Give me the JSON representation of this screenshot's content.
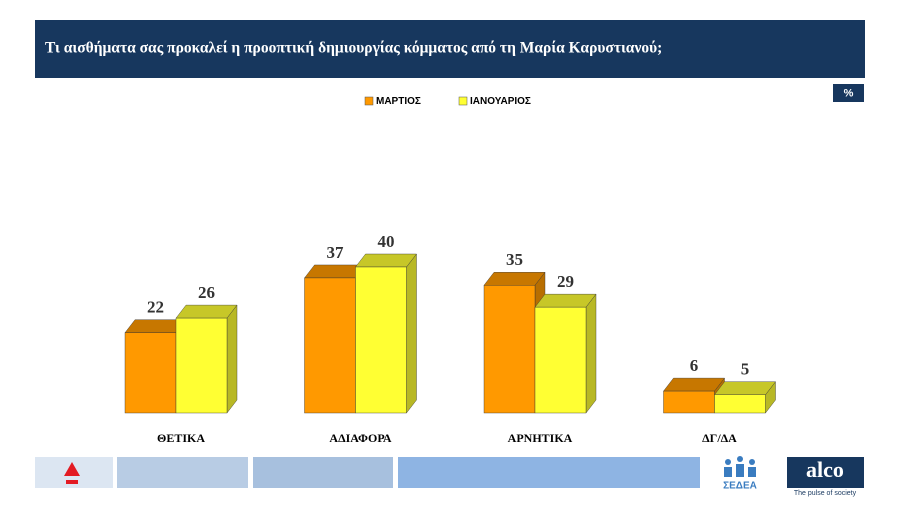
{
  "title": "Τι αισθήματα σας προκαλεί η προοπτική δημιουργίας κόμματος από τη Μαρία Καρυστιανού;",
  "unit_badge": "%",
  "chart_data": {
    "type": "bar3d",
    "categories": [
      "ΘΕΤΙΚΑ",
      "ΑΔΙΑΦΟΡΑ",
      "ΑΡΝΗΤΙΚΑ",
      "ΔΓ/ΔΑ"
    ],
    "series": [
      {
        "name": "ΜΑΡΤΙΟΣ",
        "color": "#ff9900",
        "values": [
          22,
          37,
          35,
          6
        ]
      },
      {
        "name": "ΙΑΝΟΥΑΡΙΟΣ",
        "color": "#ffff33",
        "values": [
          26,
          40,
          29,
          5
        ]
      }
    ]
  },
  "footer": {
    "brand1": "ΣΕΔΕΑ",
    "brand2": "alco",
    "tagline": "The pulse of society"
  }
}
